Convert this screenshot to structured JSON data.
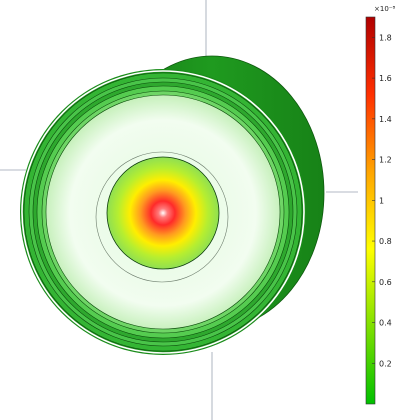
{
  "colors": {
    "background": "#ffffff",
    "outer_shell": "#1f9a1f",
    "hot": "#ff2a2a",
    "cold": "#00c000",
    "axis_line": "#9aa3b0"
  },
  "colorbar": {
    "exponent_label": "×10⁻⁸",
    "min": 0,
    "max": 1.9,
    "ticks": [
      {
        "value": 0.2,
        "label": "0.2"
      },
      {
        "value": 0.4,
        "label": "0.4"
      },
      {
        "value": 0.6,
        "label": "0.6"
      },
      {
        "value": 0.8,
        "label": "0.8"
      },
      {
        "value": 1.0,
        "label": "1"
      },
      {
        "value": 1.2,
        "label": "1.2"
      },
      {
        "value": 1.4,
        "label": "1.4"
      },
      {
        "value": 1.6,
        "label": "1.6"
      },
      {
        "value": 1.8,
        "label": "1.8"
      }
    ],
    "stops": [
      "#00c000",
      "#7fe000",
      "#ffff00",
      "#ffa500",
      "#ff3000",
      "#b00000"
    ]
  }
}
